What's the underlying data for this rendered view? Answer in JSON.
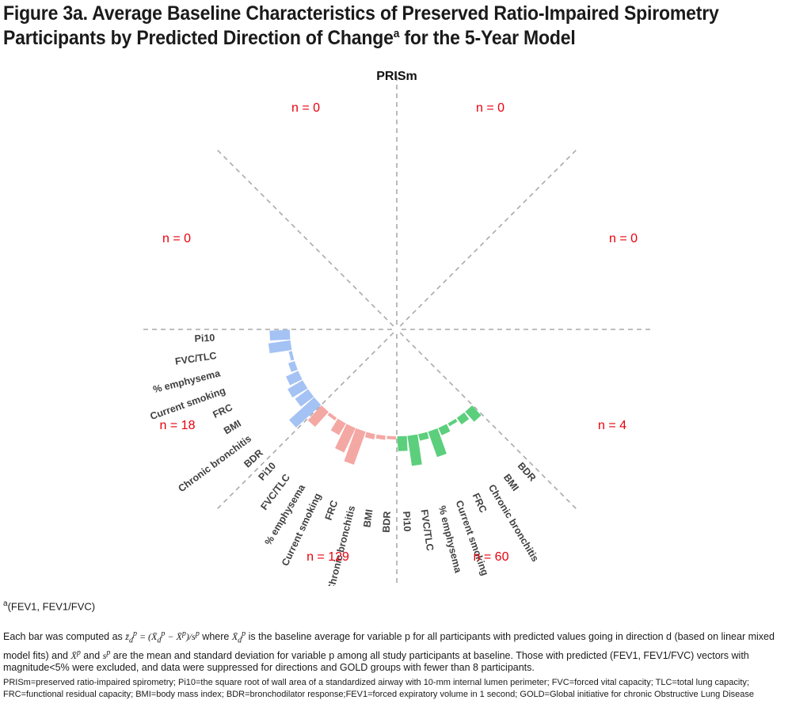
{
  "title": {
    "line1": "Figure 3a. Average Baseline Characteristics of Preserved Ratio-Impaired Spirometry",
    "line2_pre": "Participants by Predicted Direction of Change",
    "line2_sup": "a",
    "line2_post": " for the 5-Year Model"
  },
  "colors": {
    "blue": "#a4c2f4",
    "red": "#f4a8a4",
    "green": "#5ccf7c",
    "count": "#e8000b",
    "divider": "#aaaaaa",
    "label": "#404040"
  },
  "chart_data": {
    "type": "radial-bar",
    "title": "PRISm",
    "sectors": [
      {
        "id": "left-lower",
        "count_label": "n =  18",
        "color": "blue",
        "labels": [
          "Pi10",
          "FVC/TLC",
          "% emphysema",
          "Current smoking",
          "FRC",
          "BMI",
          "Chronic bronchitis",
          "BDR"
        ],
        "values": [
          0.3,
          0.33,
          0.05,
          0.1,
          0.2,
          0.26,
          0.24,
          0.5
        ]
      },
      {
        "id": "bottom-left",
        "count_label": "n =  129",
        "color": "red",
        "labels": [
          "Pi10",
          "FVC/TLC",
          "% emphysema",
          "Current smoking",
          "FRC",
          "Chronic bronchitis",
          "BMI",
          "BDR"
        ],
        "values": [
          0.3,
          0.03,
          -0.2,
          0.4,
          0.52,
          0.08,
          0.06,
          0.02
        ]
      },
      {
        "id": "bottom-right",
        "count_label": "n =  60",
        "color": "green",
        "labels": [
          "Pi10",
          "FVC/TLC",
          "% emphysema",
          "Current smoking",
          "FRC",
          "Chronic bronchitis",
          "BMI",
          "BDR"
        ],
        "values": [
          0.22,
          0.45,
          0.1,
          0.4,
          0.12,
          0.05,
          0.12,
          0.2
        ]
      },
      {
        "id": "right-lower",
        "count_label": "n =  4",
        "color": "green",
        "labels": [],
        "values": []
      },
      {
        "id": "right-upper",
        "count_label": "n =  0",
        "color": "green",
        "labels": [],
        "values": []
      },
      {
        "id": "top-right",
        "count_label": "n =  0",
        "color": "green",
        "labels": [],
        "values": []
      },
      {
        "id": "top-left",
        "count_label": "n =  0",
        "color": "green",
        "labels": [],
        "values": []
      },
      {
        "id": "left-upper",
        "count_label": "n =  0",
        "color": "green",
        "labels": [],
        "values": []
      }
    ]
  },
  "footnotes": {
    "a_sup": "a",
    "a_text": "(FEV1, FEV1/FVC)",
    "each_1": "Each bar was computed as",
    "each_where": "where",
    "each_2": "is the baseline average for variable p for all participants with predicted values going in direction d (based on linear mixed model fits) and",
    "each_and": "and",
    "each_3": "are the mean and standard deviation for variable p among all study participants at baseline.  Those with predicted (FEV1, FEV1/FVC) vectors with magnitude<5% were excluded, and data were suppressed for directions and GOLD groups with fewer than 8 participants.",
    "abbr": "PRISm=preserved ratio-impaired spirometry; Pi10=the square root of wall area of a standardized airway with 10-mm internal lumen perimeter; FVC=forced vital capacity; TLC=total lung capacity; FRC=functional residual capacity; BMI=body mass index; BDR=bronchodilator response;FEV1=forced expiratory volume in 1 second; GOLD=Global initiative for chronic Obstructive Lung Disease"
  }
}
